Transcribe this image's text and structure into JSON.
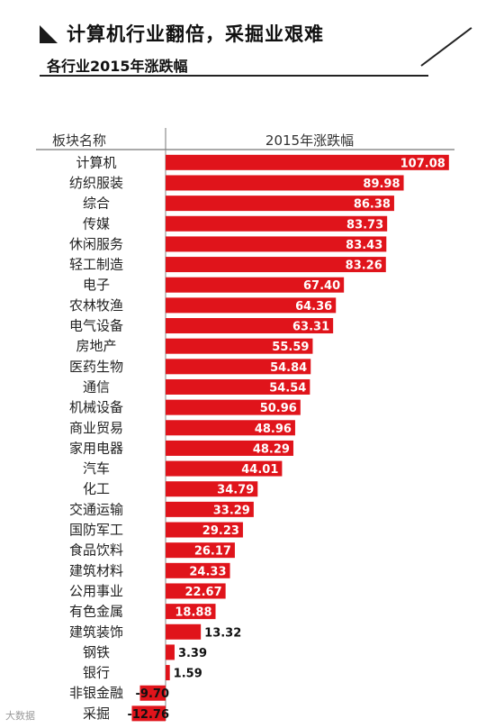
{
  "title": "计算机行业翻倍，采掘业艰难",
  "subtitle": "各行业2015年涨跌幅",
  "watermark": "大数据",
  "chart_data": {
    "type": "bar",
    "orientation": "horizontal",
    "column_headers": [
      "板块名称",
      "2015年涨跌幅"
    ],
    "categories": [
      "计算机",
      "纺织服装",
      "综合",
      "传媒",
      "休闲服务",
      "轻工制造",
      "电子",
      "农林牧渔",
      "电气设备",
      "房地产",
      "医药生物",
      "通信",
      "机械设备",
      "商业贸易",
      "家用电器",
      "汽车",
      "化工",
      "交通运输",
      "国防军工",
      "食品饮料",
      "建筑材料",
      "公用事业",
      "有色金属",
      "建筑装饰",
      "钢铁",
      "银行",
      "非银金融",
      "采掘"
    ],
    "values": [
      107.08,
      89.98,
      86.38,
      83.73,
      83.43,
      83.26,
      67.4,
      64.36,
      63.31,
      55.59,
      54.84,
      54.54,
      50.96,
      48.96,
      48.29,
      44.01,
      34.79,
      33.29,
      29.23,
      26.17,
      24.33,
      22.67,
      18.88,
      13.32,
      3.39,
      1.59,
      -9.7,
      -12.76
    ],
    "labels": [
      "107.08",
      "89.98",
      "86.38",
      "83.73",
      "83.43",
      "83.26",
      "67.40",
      "64.36",
      "63.31",
      "55.59",
      "54.84",
      "54.54",
      "50.96",
      "48.96",
      "48.29",
      "44.01",
      "34.79",
      "33.29",
      "29.23",
      "26.17",
      "24.33",
      "22.67",
      "18.88",
      "13.32",
      "3.39",
      "1.59",
      "-9.70",
      "-12.76"
    ],
    "bar_color": "#e0141b",
    "grid": false,
    "legend": "none"
  }
}
